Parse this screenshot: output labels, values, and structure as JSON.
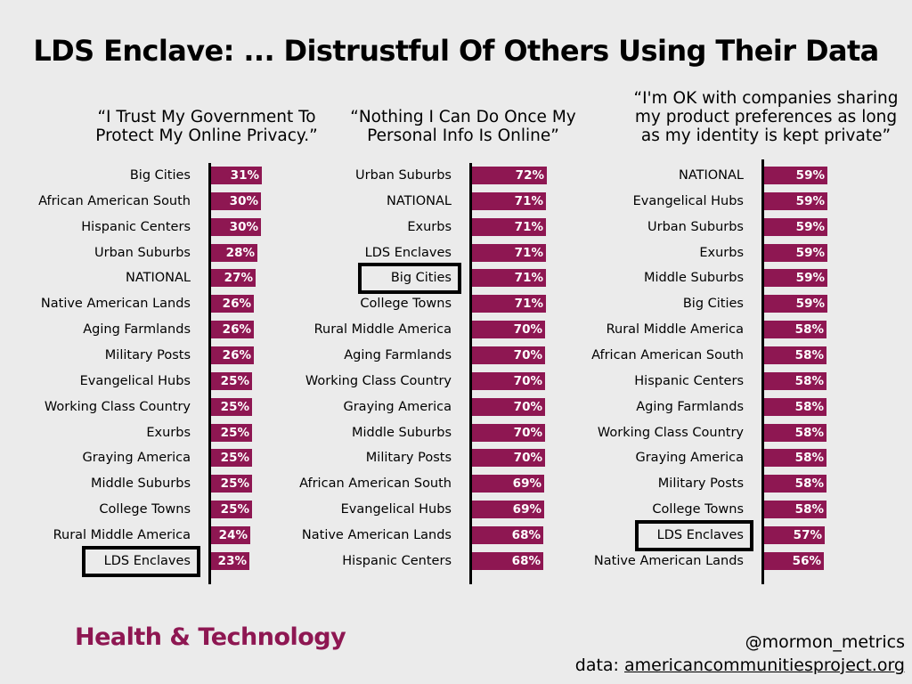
{
  "title": "LDS Enclave: ... Distrustful Of Others Using Their Data",
  "footer": {
    "section": "Health & Technology",
    "handle": "@mormon_metrics",
    "data_prefix": "data: ",
    "data_source": "americancommunitiesproject.org"
  },
  "colors": {
    "bar": "#8e1752",
    "background": "#ebebeb"
  },
  "chart_data": [
    {
      "type": "bar",
      "orientation": "horizontal",
      "title": "“I Trust My Government To\nProtect My Online Privacy.”",
      "highlight": "LDS Enclaves",
      "categories": [
        "Big Cities",
        "African American South",
        "Hispanic Centers",
        "Urban Suburbs",
        "NATIONAL",
        "Native American Lands",
        "Aging Farmlands",
        "Military Posts",
        "Evangelical Hubs",
        "Working Class Country",
        "Exurbs",
        "Graying America",
        "Middle Suburbs",
        "College Towns",
        "Rural Middle America",
        "LDS Enclaves"
      ],
      "values": [
        31,
        30,
        30,
        28,
        27,
        26,
        26,
        26,
        25,
        25,
        25,
        25,
        25,
        25,
        24,
        23
      ],
      "value_labels": [
        "31%",
        "30%",
        "30%",
        "28%",
        "27%",
        "26%",
        "26%",
        "26%",
        "25%",
        "25%",
        "25%",
        "25%",
        "25%",
        "25%",
        "24%",
        "23%"
      ]
    },
    {
      "type": "bar",
      "orientation": "horizontal",
      "title": "“Nothing I Can Do Once My\nPersonal Info Is Online”",
      "highlight": "Big Cities",
      "categories": [
        "Urban Suburbs",
        "NATIONAL",
        "Exurbs",
        "LDS Enclaves",
        "Big Cities",
        "College Towns",
        "Rural Middle America",
        "Aging Farmlands",
        "Working Class Country",
        "Graying America",
        "Middle Suburbs",
        "Military Posts",
        "African American South",
        "Evangelical Hubs",
        "Native American Lands",
        "Hispanic Centers"
      ],
      "values": [
        72,
        71,
        71,
        71,
        71,
        71,
        70,
        70,
        70,
        70,
        70,
        70,
        69,
        69,
        68,
        68
      ],
      "value_labels": [
        "72%",
        "71%",
        "71%",
        "71%",
        "71%",
        "71%",
        "70%",
        "70%",
        "70%",
        "70%",
        "70%",
        "70%",
        "69%",
        "69%",
        "68%",
        "68%"
      ]
    },
    {
      "type": "bar",
      "orientation": "horizontal",
      "title": "“I'm OK with companies sharing\nmy product preferences as long\nas my identity is kept private”",
      "highlight": "LDS Enclaves",
      "categories": [
        "NATIONAL",
        "Evangelical Hubs",
        "Urban Suburbs",
        "Exurbs",
        "Middle Suburbs",
        "Big Cities",
        "Rural Middle America",
        "African American South",
        "Hispanic Centers",
        "Aging Farmlands",
        "Working Class Country",
        "Graying America",
        "Military Posts",
        "College Towns",
        "LDS Enclaves",
        "Native American Lands"
      ],
      "values": [
        59,
        59,
        59,
        59,
        59,
        59,
        58,
        58,
        58,
        58,
        58,
        58,
        58,
        58,
        57,
        56
      ],
      "value_labels": [
        "59%",
        "59%",
        "59%",
        "59%",
        "59%",
        "59%",
        "58%",
        "58%",
        "58%",
        "58%",
        "58%",
        "58%",
        "58%",
        "58%",
        "57%",
        "56%"
      ]
    }
  ]
}
